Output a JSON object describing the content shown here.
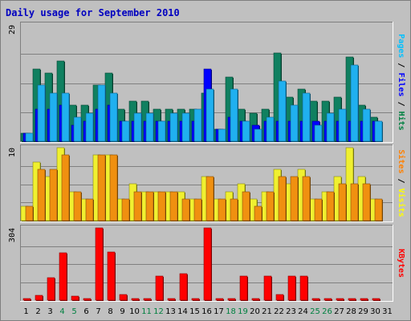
{
  "chart_data": {
    "type": "bar",
    "title": "Daily usage for September 2010",
    "categories": [
      "1",
      "2",
      "3",
      "4",
      "5",
      "6",
      "7",
      "8",
      "9",
      "10",
      "11",
      "12",
      "13",
      "14",
      "15",
      "16",
      "17",
      "18",
      "19",
      "20",
      "21",
      "22",
      "23",
      "24",
      "25",
      "26",
      "27",
      "28",
      "29",
      "30",
      "31"
    ],
    "weekend_days": [
      "4",
      "5",
      "11",
      "12",
      "18",
      "19",
      "25",
      "26"
    ],
    "panels": [
      {
        "name": "pages-files-hits",
        "scale_label": "29",
        "ymax": 29,
        "right_labels": [
          {
            "text": "Pages",
            "color": "#00c0ff"
          },
          {
            "text": " / ",
            "color": "#000000"
          },
          {
            "text": "Files",
            "color": "#0000ff"
          },
          {
            "text": " / ",
            "color": "#000000"
          },
          {
            "text": "Hits",
            "color": "#008040"
          }
        ],
        "series": [
          {
            "name": "Hits",
            "color": "#108060",
            "offset": 0,
            "values": [
              2,
              18,
              17,
              20,
              9,
              9,
              14,
              17,
              8,
              10,
              10,
              8,
              8,
              8,
              8,
              12,
              3,
              16,
              8,
              7,
              8,
              22,
              11,
              13,
              10,
              10,
              11,
              21,
              9,
              6,
              0
            ]
          },
          {
            "name": "Files",
            "color": "#0000ff",
            "offset": 3,
            "values": [
              2,
              8,
              8,
              9,
              4,
              5,
              8,
              9,
              5,
              5,
              5,
              5,
              5,
              5,
              5,
              18,
              3,
              6,
              5,
              4,
              5,
              5,
              5,
              5,
              5,
              5,
              5,
              5,
              5,
              5,
              0
            ]
          },
          {
            "name": "Pages",
            "color": "#20b0f0",
            "offset": 6,
            "values": [
              2,
              14,
              12,
              12,
              6,
              7,
              14,
              12,
              5,
              7,
              7,
              5,
              7,
              7,
              8,
              13,
              3,
              13,
              5,
              3,
              6,
              15,
              9,
              12,
              4,
              7,
              8,
              19,
              8,
              5,
              0
            ]
          }
        ]
      },
      {
        "name": "sites-visits",
        "scale_label": "10",
        "ymax": 10,
        "right_labels": [
          {
            "text": "Sites",
            "color": "#ff8000"
          },
          {
            "text": " / ",
            "color": "#000000"
          },
          {
            "text": "Visits",
            "color": "#ffff00"
          }
        ],
        "series": [
          {
            "name": "Visits",
            "color": "#f0f030",
            "offset": 0,
            "values": [
              2,
              8,
              6,
              10,
              4,
              3,
              9,
              9,
              3,
              5,
              4,
              4,
              4,
              4,
              3,
              6,
              3,
              4,
              5,
              3,
              4,
              7,
              5,
              7,
              3,
              4,
              6,
              10,
              6,
              3,
              0
            ]
          },
          {
            "name": "Sites",
            "color": "#f09010",
            "offset": 6,
            "values": [
              2,
              7,
              7,
              9,
              4,
              3,
              9,
              9,
              3,
              4,
              4,
              4,
              4,
              3,
              3,
              6,
              3,
              3,
              4,
              2,
              4,
              6,
              6,
              6,
              3,
              4,
              5,
              5,
              5,
              3,
              0
            ]
          }
        ]
      },
      {
        "name": "kbytes",
        "scale_label": "304",
        "ymax": 304,
        "right_labels": [
          {
            "text": "KBytes",
            "color": "#ff0000"
          }
        ],
        "series": [
          {
            "name": "KBytes",
            "color": "#ff0000",
            "offset": 3,
            "values": [
              6,
              21,
              95,
              200,
              16,
              6,
              304,
              203,
              23,
              6,
              6,
              103,
              6,
              113,
              6,
              304,
              6,
              6,
              100,
              6,
              100,
              23,
              100,
              103,
              6,
              6,
              6,
              6,
              6,
              6,
              0
            ]
          }
        ]
      }
    ]
  }
}
